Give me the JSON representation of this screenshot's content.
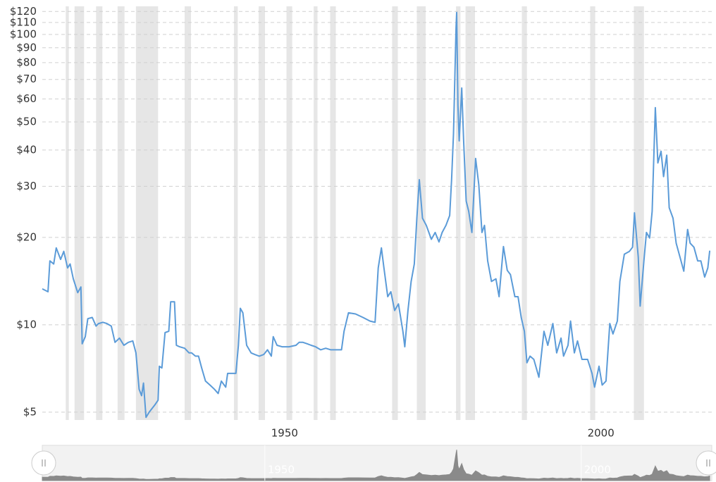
{
  "chart_data": {
    "type": "line",
    "log_scale": true,
    "grid": true,
    "xlim": [
      1911.7,
      2017.3
    ],
    "xticks": [
      1950,
      2000
    ],
    "ylim": [
      4.7,
      125
    ],
    "yticks": [
      {
        "value": 5,
        "label": "$5"
      },
      {
        "value": 10,
        "label": "$10"
      },
      {
        "value": 20,
        "label": "$20"
      },
      {
        "value": 30,
        "label": "$30"
      },
      {
        "value": 40,
        "label": "$40"
      },
      {
        "value": 50,
        "label": "$50"
      },
      {
        "value": 60,
        "label": "$60"
      },
      {
        "value": 70,
        "label": "$70"
      },
      {
        "value": 80,
        "label": "$80"
      },
      {
        "value": 90,
        "label": "$90"
      },
      {
        "value": 100,
        "label": "$100"
      },
      {
        "value": 110,
        "label": "$110"
      },
      {
        "value": 120,
        "label": "$120"
      }
    ],
    "recession_color": "#e6e6e6",
    "recessions": [
      [
        1915.4,
        1915.9
      ],
      [
        1916.8,
        1918.3
      ],
      [
        1920.2,
        1921.2
      ],
      [
        1923.6,
        1924.7
      ],
      [
        1926.5,
        1930.0
      ],
      [
        1934.2,
        1935.2
      ],
      [
        1942.0,
        1942.6
      ],
      [
        1945.9,
        1946.9
      ],
      [
        1950.3,
        1951.2
      ],
      [
        1954.6,
        1955.2
      ],
      [
        1957.2,
        1958.1
      ],
      [
        1967.0,
        1967.9
      ],
      [
        1970.9,
        1972.3
      ],
      [
        1977.1,
        1977.8
      ],
      [
        1978.6,
        1980.1
      ],
      [
        1987.5,
        1988.3
      ],
      [
        1998.3,
        1999.1
      ],
      [
        2005.2,
        2006.8
      ]
    ],
    "x": [
      1911.7,
      1912.6,
      1912.9,
      1913.5,
      1913.9,
      1914.6,
      1915.1,
      1915.7,
      1916.1,
      1916.6,
      1917.3,
      1917.8,
      1918.0,
      1918.5,
      1918.9,
      1919.6,
      1920.2,
      1920.6,
      1921.3,
      1921.9,
      1922.6,
      1923.2,
      1923.9,
      1924.6,
      1925.3,
      1926.0,
      1926.5,
      1927.0,
      1927.4,
      1927.7,
      1928.1,
      1928.6,
      1929.5,
      1930.0,
      1930.2,
      1930.6,
      1931.1,
      1931.7,
      1932.0,
      1932.6,
      1932.9,
      1933.4,
      1934.2,
      1934.9,
      1935.3,
      1935.9,
      1936.4,
      1936.9,
      1937.5,
      1938.2,
      1938.9,
      1939.5,
      1940.0,
      1940.7,
      1941.0,
      1941.8,
      1942.3,
      1942.7,
      1943.0,
      1943.4,
      1944.0,
      1944.7,
      1945.3,
      1946.0,
      1946.7,
      1947.3,
      1947.9,
      1948.2,
      1948.8,
      1949.6,
      1950.7,
      1951.8,
      1952.3,
      1952.9,
      1953.6,
      1954.2,
      1954.9,
      1955.7,
      1956.5,
      1957.3,
      1958.5,
      1959.0,
      1959.4,
      1960.1,
      1961.2,
      1962.4,
      1963.5,
      1964.3,
      1964.8,
      1965.3,
      1965.7,
      1966.3,
      1966.8,
      1967.4,
      1968.0,
      1968.7,
      1969.0,
      1969.5,
      1970.0,
      1970.5,
      1970.9,
      1971.3,
      1971.8,
      1972.4,
      1973.2,
      1973.8,
      1974.4,
      1974.9,
      1975.5,
      1976.1,
      1976.4,
      1976.7,
      1977.1,
      1977.2,
      1977.4,
      1977.6,
      1978.0,
      1978.3,
      1978.7,
      1979.1,
      1979.6,
      1980.2,
      1980.7,
      1981.2,
      1981.6,
      1982.1,
      1982.7,
      1983.4,
      1983.9,
      1984.3,
      1984.6,
      1985.2,
      1985.7,
      1986.4,
      1986.9,
      1987.4,
      1987.9,
      1988.3,
      1988.8,
      1989.4,
      1990.2,
      1991.0,
      1991.6,
      1992.4,
      1993.0,
      1993.7,
      1994.1,
      1994.8,
      1995.2,
      1995.8,
      1996.3,
      1997.0,
      1997.9,
      1998.6,
      1999.0,
      1999.7,
      2000.2,
      2000.8,
      2001.4,
      2001.9,
      2002.6,
      2003.0,
      2003.7,
      2004.5,
      2005.0,
      2005.3,
      2005.9,
      2006.2,
      2006.8,
      2007.2,
      2007.7,
      2008.1,
      2008.6,
      2009.0,
      2009.5,
      2009.9,
      2010.4,
      2010.8,
      2011.4,
      2011.9,
      2012.5,
      2013.1,
      2013.7,
      2014.1,
      2014.7,
      2015.3,
      2015.8,
      2016.4,
      2016.9,
      2017.2
    ],
    "series": [
      {
        "color": "#5b9bd8",
        "values": [
          13.3,
          13.0,
          16.6,
          16.2,
          18.4,
          16.8,
          17.9,
          15.7,
          16.2,
          14.4,
          12.9,
          13.5,
          8.6,
          9.1,
          10.5,
          10.6,
          9.9,
          10.1,
          10.2,
          10.1,
          9.9,
          8.7,
          9.0,
          8.5,
          8.7,
          8.8,
          8.0,
          6.0,
          5.7,
          6.3,
          4.8,
          5.0,
          5.3,
          5.5,
          7.2,
          7.1,
          9.4,
          9.5,
          12.0,
          12.0,
          8.5,
          8.4,
          8.3,
          8.0,
          8.0,
          7.8,
          7.8,
          7.1,
          6.4,
          6.2,
          6.0,
          5.8,
          6.4,
          6.1,
          6.8,
          6.8,
          6.8,
          8.5,
          11.4,
          11.0,
          8.5,
          8.0,
          7.9,
          7.8,
          7.9,
          8.2,
          7.8,
          9.1,
          8.5,
          8.4,
          8.4,
          8.5,
          8.7,
          8.7,
          8.6,
          8.5,
          8.4,
          8.2,
          8.3,
          8.2,
          8.2,
          8.2,
          9.5,
          11.0,
          10.9,
          10.6,
          10.3,
          10.2,
          15.7,
          18.4,
          15.7,
          12.5,
          13.0,
          11.2,
          11.8,
          9.5,
          8.4,
          11.2,
          14.1,
          16.2,
          23.3,
          31.6,
          23.3,
          22.0,
          19.7,
          20.8,
          19.3,
          20.8,
          22.0,
          23.8,
          31.6,
          45.5,
          105,
          119,
          57,
          43,
          65.4,
          43,
          26.7,
          24.6,
          20.8,
          37.4,
          30.4,
          20.8,
          22,
          16.6,
          14.1,
          14.4,
          12.5,
          15.7,
          18.6,
          15.4,
          14.9,
          12.5,
          12.5,
          10.6,
          9.5,
          7.4,
          7.8,
          7.6,
          6.6,
          9.5,
          8.5,
          10.1,
          8.0,
          9.0,
          7.8,
          8.5,
          10.3,
          8.0,
          8.8,
          7.6,
          7.6,
          6.8,
          6.1,
          7.2,
          6.2,
          6.4,
          10.1,
          9.3,
          10.3,
          14.1,
          17.5,
          17.9,
          18.5,
          24.3,
          17.1,
          11.6,
          16.6,
          20.8,
          19.9,
          24.6,
          56,
          36.1,
          39.6,
          32.4,
          38.4,
          25.3,
          23.3,
          19.1,
          17.1,
          15.3,
          21.3,
          19.1,
          18.5,
          16.6,
          16.6,
          14.6,
          15.7,
          18.0
        ]
      }
    ],
    "navigator_color": "#8a8a8a"
  }
}
